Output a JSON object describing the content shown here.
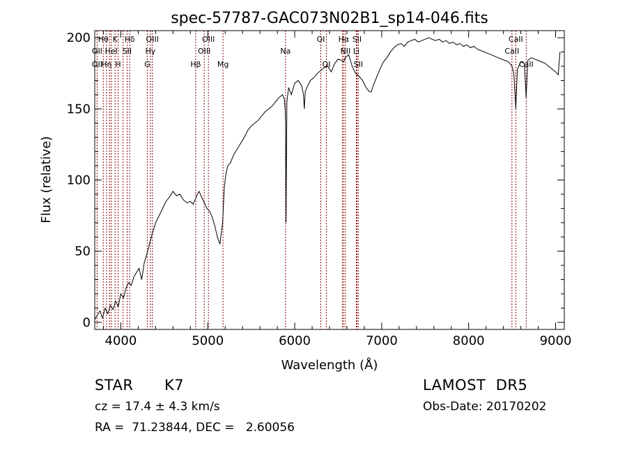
{
  "chart_data": {
    "type": "line",
    "title": "spec-57787-GAC073N02B1_sp14-046.fits",
    "xlabel": "Wavelength (Å)",
    "ylabel": "Flux (relative)",
    "xlim": [
      3700,
      9100
    ],
    "ylim": [
      -5,
      205
    ],
    "xticks": [
      4000,
      5000,
      6000,
      7000,
      8000,
      9000
    ],
    "yticks": [
      0,
      50,
      100,
      150,
      200
    ],
    "grid": false,
    "series": [
      {
        "color": "#000000",
        "x": [
          3700,
          3730,
          3760,
          3790,
          3820,
          3850,
          3880,
          3910,
          3940,
          3970,
          4000,
          4030,
          4060,
          4090,
          4120,
          4150,
          4180,
          4210,
          4240,
          4270,
          4300,
          4330,
          4360,
          4400,
          4440,
          4480,
          4520,
          4560,
          4600,
          4640,
          4680,
          4720,
          4760,
          4800,
          4830,
          4860,
          4880,
          4900,
          4930,
          4960,
          4990,
          5020,
          5050,
          5080,
          5110,
          5140,
          5170,
          5190,
          5210,
          5230,
          5260,
          5300,
          5340,
          5380,
          5420,
          5460,
          5500,
          5540,
          5580,
          5620,
          5660,
          5700,
          5740,
          5780,
          5820,
          5860,
          5880,
          5890,
          5895,
          5900,
          5910,
          5930,
          5960,
          6000,
          6040,
          6080,
          6100,
          6110,
          6120,
          6140,
          6180,
          6220,
          6260,
          6300,
          6340,
          6380,
          6420,
          6460,
          6500,
          6540,
          6563,
          6580,
          6620,
          6660,
          6700,
          6740,
          6780,
          6820,
          6860,
          6880,
          6900,
          6940,
          6980,
          7020,
          7060,
          7100,
          7140,
          7180,
          7220,
          7260,
          7300,
          7340,
          7380,
          7420,
          7460,
          7500,
          7540,
          7580,
          7620,
          7660,
          7700,
          7740,
          7780,
          7820,
          7860,
          7900,
          7940,
          7980,
          8020,
          8060,
          8100,
          8140,
          8180,
          8220,
          8260,
          8300,
          8340,
          8380,
          8420,
          8460,
          8498,
          8520,
          8542,
          8560,
          8600,
          8640,
          8662,
          8680,
          8720,
          8760,
          8800,
          8840,
          8880,
          8920,
          8960,
          9000,
          9030,
          9050
        ],
        "y": [
          2,
          5,
          8,
          3,
          10,
          6,
          12,
          9,
          15,
          11,
          20,
          17,
          24,
          28,
          26,
          32,
          35,
          38,
          30,
          42,
          48,
          55,
          62,
          70,
          75,
          80,
          85,
          88,
          92,
          89,
          90,
          86,
          84,
          85,
          83,
          87,
          90,
          92,
          88,
          84,
          80,
          78,
          74,
          68,
          60,
          55,
          70,
          95,
          105,
          110,
          112,
          118,
          122,
          126,
          130,
          135,
          138,
          140,
          142,
          145,
          148,
          150,
          152,
          155,
          158,
          160,
          157,
          150,
          140,
          70,
          155,
          165,
          160,
          168,
          170,
          166,
          160,
          150,
          162,
          165,
          170,
          172,
          175,
          177,
          179,
          180,
          176,
          182,
          185,
          184,
          183,
          186,
          188,
          180,
          175,
          173,
          170,
          165,
          162,
          162,
          166,
          172,
          178,
          183,
          186,
          190,
          193,
          195,
          196,
          194,
          197,
          198,
          199,
          197,
          198,
          199,
          200,
          199,
          198,
          199,
          197,
          198,
          196,
          197,
          195,
          196,
          194,
          195,
          193,
          194,
          192,
          191,
          190,
          189,
          188,
          187,
          186,
          185,
          184,
          183,
          180,
          175,
          150,
          178,
          183,
          182,
          158,
          184,
          186,
          185,
          184,
          183,
          182,
          180,
          178,
          176,
          174,
          190
        ]
      }
    ],
    "lines": [
      {
        "wave": 3727,
        "color": "#8b0000"
      },
      {
        "wave": 3798,
        "color": "#8b0000"
      },
      {
        "wave": 3835,
        "color": "#8b0000"
      },
      {
        "wave": 3869,
        "color": "#8b0000"
      },
      {
        "wave": 3889,
        "color": "#8b0000"
      },
      {
        "wave": 3934,
        "color": "#8b0000"
      },
      {
        "wave": 3969,
        "color": "#8b0000"
      },
      {
        "wave": 4026,
        "color": "#8b0000"
      },
      {
        "wave": 4072,
        "color": "#8b0000"
      },
      {
        "wave": 4102,
        "color": "#8b0000"
      },
      {
        "wave": 4304,
        "color": "#8b0000"
      },
      {
        "wave": 4340,
        "color": "#8b0000"
      },
      {
        "wave": 4363,
        "color": "#8b0000"
      },
      {
        "wave": 4861,
        "color": "#8b0000"
      },
      {
        "wave": 4959,
        "color": "#8b0000"
      },
      {
        "wave": 5007,
        "color": "#8b0000"
      },
      {
        "wave": 5175,
        "color": "#8b0000"
      },
      {
        "wave": 5894,
        "color": "#8b0000"
      },
      {
        "wave": 6300,
        "color": "#8b0000"
      },
      {
        "wave": 6364,
        "color": "#8b0000"
      },
      {
        "wave": 6548,
        "color": "#8b0000"
      },
      {
        "wave": 6563,
        "color": "#8b0000"
      },
      {
        "wave": 6583,
        "color": "#8b0000"
      },
      {
        "wave": 6708,
        "color": "#8b0000"
      },
      {
        "wave": 6716,
        "color": "#8b0000"
      },
      {
        "wave": 6731,
        "color": "#8b0000"
      },
      {
        "wave": 8498,
        "color": "#8b0000"
      },
      {
        "wave": 8542,
        "color": "#8b0000"
      },
      {
        "wave": 8662,
        "color": "#8b0000"
      }
    ],
    "line_labels": [
      {
        "text": "Hθ",
        "wave": 3798,
        "row": 0
      },
      {
        "text": "K",
        "wave": 3934,
        "row": 0
      },
      {
        "text": "Hδ",
        "wave": 4102,
        "row": 0
      },
      {
        "text": "OIII",
        "wave": 4363,
        "row": 0
      },
      {
        "text": "OIII",
        "wave": 5007,
        "row": 0
      },
      {
        "text": "OI",
        "wave": 6300,
        "row": 0
      },
      {
        "text": "Hα",
        "wave": 6563,
        "row": 0
      },
      {
        "text": "SII",
        "wave": 6716,
        "row": 0
      },
      {
        "text": "CaII",
        "wave": 8542,
        "row": 0
      },
      {
        "text": "OII",
        "wave": 3727,
        "row": 1
      },
      {
        "text": "HeI",
        "wave": 3889,
        "row": 1
      },
      {
        "text": "SII",
        "wave": 4072,
        "row": 1
      },
      {
        "text": "Hγ",
        "wave": 4340,
        "row": 1
      },
      {
        "text": "OIII",
        "wave": 4959,
        "row": 1
      },
      {
        "text": "Na",
        "wave": 5894,
        "row": 1
      },
      {
        "text": "NII",
        "wave": 6583,
        "row": 1
      },
      {
        "text": "Li",
        "wave": 6708,
        "row": 1
      },
      {
        "text": "CaII",
        "wave": 8498,
        "row": 1
      },
      {
        "text": "OII",
        "wave": 3727,
        "row": 2
      },
      {
        "text": "Hη",
        "wave": 3835,
        "row": 2
      },
      {
        "text": "H",
        "wave": 3969,
        "row": 2
      },
      {
        "text": "G",
        "wave": 4304,
        "row": 2
      },
      {
        "text": "Hβ",
        "wave": 4861,
        "row": 2
      },
      {
        "text": "Mg",
        "wave": 5175,
        "row": 2
      },
      {
        "text": "OI",
        "wave": 6364,
        "row": 2
      },
      {
        "text": "SII",
        "wave": 6731,
        "row": 2
      },
      {
        "text": "CaII",
        "wave": 8662,
        "row": 2
      }
    ]
  },
  "info": {
    "object_class": "STAR",
    "subclass": "K7",
    "survey": "LAMOST  DR5",
    "velocity": "cz = 17.4 ± 4.3 km/s",
    "obs_date": "Obs-Date: 20170202",
    "coords": "RA =  71.23844, DEC =   2.60056"
  }
}
